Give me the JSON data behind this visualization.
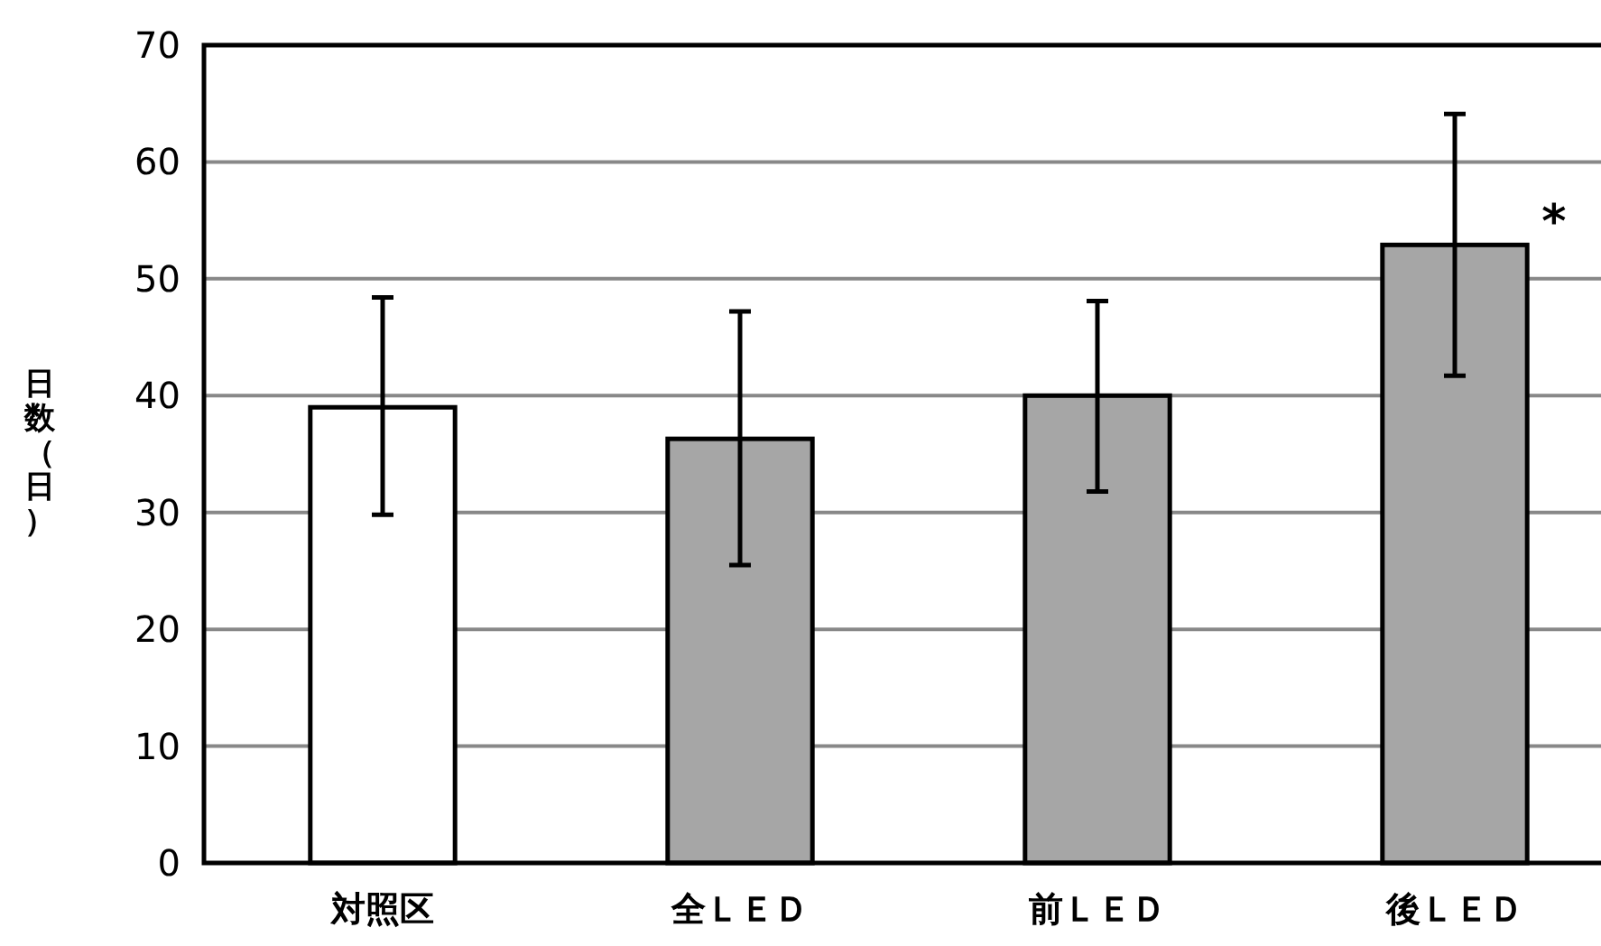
{
  "chart_data": {
    "type": "bar",
    "ylabel": "日数（日）",
    "categories": [
      "対照区",
      "全ＬＥＤ",
      "前ＬＥＤ",
      "後ＬＥＤ"
    ],
    "values": [
      39.0,
      36.3,
      40.0,
      52.9
    ],
    "colors": [
      "#ffffff",
      "#a6a6a6",
      "#a6a6a6",
      "#a6a6a6"
    ],
    "errors": [
      [
        29.8,
        48.4
      ],
      [
        25.5,
        47.2
      ],
      [
        31.8,
        48.1
      ],
      [
        41.7,
        64.1
      ]
    ],
    "ylim": [
      0,
      70
    ],
    "yticks": [
      0,
      10,
      20,
      30,
      40,
      50,
      60,
      70
    ],
    "grid": "y",
    "annotations": [
      {
        "text": "*",
        "x": "後ＬＥＤ",
        "y": 52.9
      }
    ]
  }
}
